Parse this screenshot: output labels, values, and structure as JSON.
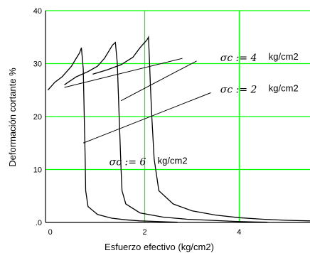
{
  "chart_data": {
    "type": "line",
    "title": "",
    "xlabel": "Esfuerzo efectivo (kg/cm2)",
    "ylabel": "Deformación cortante %",
    "xlim": [
      -0.1,
      5.5
    ],
    "ylim": [
      0,
      40
    ],
    "x_ticks": [
      0,
      2,
      4
    ],
    "y_ticks": [
      0,
      10,
      20,
      30,
      40
    ],
    "x_tick_labels": [
      "0",
      "2",
      "4"
    ],
    "y_tick_labels": [
      ".0",
      "10",
      "20",
      "30",
      "40"
    ],
    "grid": true,
    "legend": "none",
    "series": [
      {
        "x": [
          -0.05,
          0.1,
          0.25,
          0.35,
          0.45,
          0.55,
          0.62,
          0.66,
          0.7,
          0.72,
          0.74,
          0.75,
          0.8,
          1.0,
          1.3,
          1.6,
          1.9,
          2.2,
          2.5,
          2.7
        ],
        "y": [
          25,
          26.5,
          27.5,
          28.5,
          29.5,
          31,
          32,
          33,
          29,
          20,
          12,
          6,
          3,
          1.5,
          0.8,
          0.5,
          0.3,
          0.2,
          0.1,
          0.05
        ]
      },
      {
        "x": [
          0.3,
          0.55,
          0.8,
          1.0,
          1.15,
          1.25,
          1.32,
          1.38,
          1.42,
          1.46,
          1.5,
          1.52,
          1.6,
          1.9,
          2.4,
          2.9,
          3.4,
          3.9,
          4.3,
          4.6
        ],
        "y": [
          26,
          27.5,
          28.5,
          29.5,
          31,
          32.5,
          33.5,
          34,
          30,
          20,
          10,
          6,
          3.5,
          1.8,
          1.0,
          0.6,
          0.4,
          0.2,
          0.1,
          0.05
        ]
      },
      {
        "x": [
          0.9,
          1.2,
          1.5,
          1.75,
          1.9,
          2.0,
          2.05,
          2.08,
          2.1,
          2.12,
          2.15,
          2.2,
          2.3,
          2.6,
          3.0,
          3.5,
          4.0,
          4.5,
          5.0,
          5.5
        ],
        "y": [
          28,
          28.8,
          29.8,
          31.2,
          33,
          34,
          34.5,
          35,
          31,
          26,
          20,
          12,
          6,
          3.5,
          2.2,
          1.4,
          0.9,
          0.6,
          0.4,
          0.3
        ]
      }
    ],
    "annotations": [
      {
        "symbol": "σc",
        "text": ":= 4",
        "unit": "kg/cm2",
        "x": 3.6,
        "y": 30.5
      },
      {
        "symbol": "σc",
        "text": ":= 2",
        "unit": "kg/cm2",
        "x": 3.6,
        "y": 24.5
      },
      {
        "symbol": "σc",
        "text": ":= 6",
        "unit": "kg/cm2",
        "x": 1.25,
        "y": 10.8
      }
    ],
    "leader_lines": [
      {
        "x1": 0.3,
        "y1": 25.5,
        "x2": 2.8,
        "y2": 31
      },
      {
        "x1": 1.5,
        "y1": 23,
        "x2": 3.1,
        "y2": 30.5
      },
      {
        "x1": 0.7,
        "y1": 15,
        "x2": 3.4,
        "y2": 24.5
      }
    ],
    "colors": {
      "grid": "#00ff00",
      "curve": "#000000",
      "axis": "#000000"
    }
  }
}
